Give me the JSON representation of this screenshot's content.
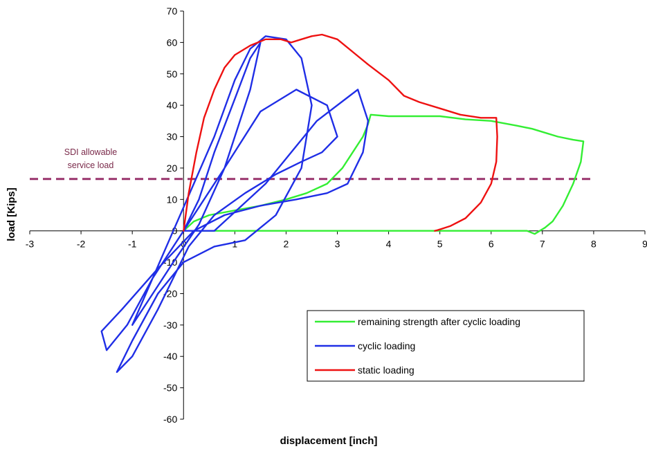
{
  "chart_data": {
    "type": "line",
    "title": "",
    "xlabel": "displacement [inch]",
    "ylabel": "load [Kips]",
    "xlim": [
      -3,
      9
    ],
    "ylim": [
      -60,
      70
    ],
    "x_ticks": [
      -3,
      -2,
      -1,
      0,
      1,
      2,
      3,
      4,
      5,
      6,
      7,
      8,
      9
    ],
    "y_ticks": [
      -60,
      -50,
      -40,
      -30,
      -20,
      -10,
      0,
      10,
      20,
      30,
      40,
      50,
      60,
      70
    ],
    "grid": false,
    "legend_position": "lower-right",
    "reference_line": {
      "label": [
        "SDI allowable",
        "service load"
      ],
      "y": 16.5,
      "x_range": [
        -3,
        8
      ],
      "color": "#99336b",
      "style": "dashed"
    },
    "series": [
      {
        "name": "remaining strength after cyclic loading",
        "color": "#33ee33",
        "x": [
          0,
          0.2,
          0.5,
          1.0,
          1.5,
          2.0,
          2.4,
          2.8,
          3.1,
          3.3,
          3.5,
          3.6,
          3.65,
          4.0,
          4.5,
          5.0,
          5.5,
          6.0,
          6.5,
          6.8,
          7.0,
          7.3,
          7.6,
          7.8,
          7.75,
          7.6,
          7.4,
          7.2,
          7.05,
          6.95,
          6.85,
          6.7,
          6.0,
          5.0,
          4.0,
          3.0,
          2.0,
          1.0,
          0.5,
          0.3
        ],
        "y": [
          0,
          3,
          5,
          6.5,
          8,
          10,
          12,
          15,
          20,
          25,
          30,
          34,
          37,
          36.5,
          36.5,
          36.5,
          35.5,
          35,
          33.5,
          32.5,
          31.5,
          30,
          29,
          28.5,
          22,
          15,
          8,
          3,
          1,
          0,
          -1,
          0,
          0,
          0,
          0,
          0,
          0,
          0,
          0,
          0
        ]
      },
      {
        "name": "cyclic loading",
        "color": "#1f2ee6",
        "x": [
          0,
          0.3,
          0.6,
          1.0,
          1.3,
          1.5,
          1.3,
          0.8,
          0.3,
          -0.2,
          -0.6,
          -1.0,
          -0.6,
          -0.2,
          0.2,
          0.6,
          1.0,
          1.3,
          1.6,
          2.0,
          2.3,
          2.5,
          2.3,
          1.8,
          1.2,
          0.6,
          0.0,
          -0.5,
          -1.0,
          -1.3,
          -1.0,
          -0.5,
          0.1,
          0.6,
          1.2,
          1.8,
          2.3,
          2.7,
          3.0,
          2.8,
          2.2,
          1.5,
          0.8,
          0.0,
          -0.6,
          -1.1,
          -1.5,
          -1.6,
          -1.2,
          -0.5,
          0.2,
          0.8,
          1.5,
          2.2,
          2.8,
          3.2,
          3.5,
          3.6,
          3.4,
          2.6,
          1.6,
          0.6,
          0.0
        ],
        "y": [
          0,
          10,
          25,
          42,
          55,
          60,
          45,
          20,
          2,
          -10,
          -20,
          -30,
          -15,
          0,
          15,
          30,
          48,
          58,
          62,
          61,
          55,
          40,
          20,
          5,
          -3,
          -5,
          -10,
          -20,
          -35,
          -45,
          -40,
          -25,
          -5,
          5,
          12,
          18,
          22,
          25,
          30,
          40,
          45,
          38,
          20,
          0,
          -15,
          -30,
          -38,
          -32,
          -25,
          -12,
          0,
          5,
          8,
          10,
          12,
          15,
          25,
          35,
          45,
          35,
          15,
          0,
          0
        ]
      },
      {
        "name": "static loading",
        "color": "#ee1111",
        "x": [
          0,
          0.1,
          0.25,
          0.4,
          0.6,
          0.8,
          1.0,
          1.3,
          1.6,
          1.9,
          2.1,
          2.3,
          2.5,
          2.7,
          3.0,
          3.3,
          3.6,
          4.0,
          4.3,
          4.6,
          5.0,
          5.4,
          5.8,
          6.1,
          6.12,
          6.1,
          6.0,
          5.8,
          5.5,
          5.2,
          4.95,
          4.9
        ],
        "y": [
          0,
          12,
          25,
          36,
          45,
          52,
          56,
          59,
          61,
          61,
          60,
          61,
          62,
          62.5,
          61,
          57,
          53,
          48,
          43,
          41,
          39,
          37,
          36,
          36,
          30,
          22,
          15,
          9,
          4,
          1.5,
          0.2,
          0
        ]
      }
    ]
  }
}
